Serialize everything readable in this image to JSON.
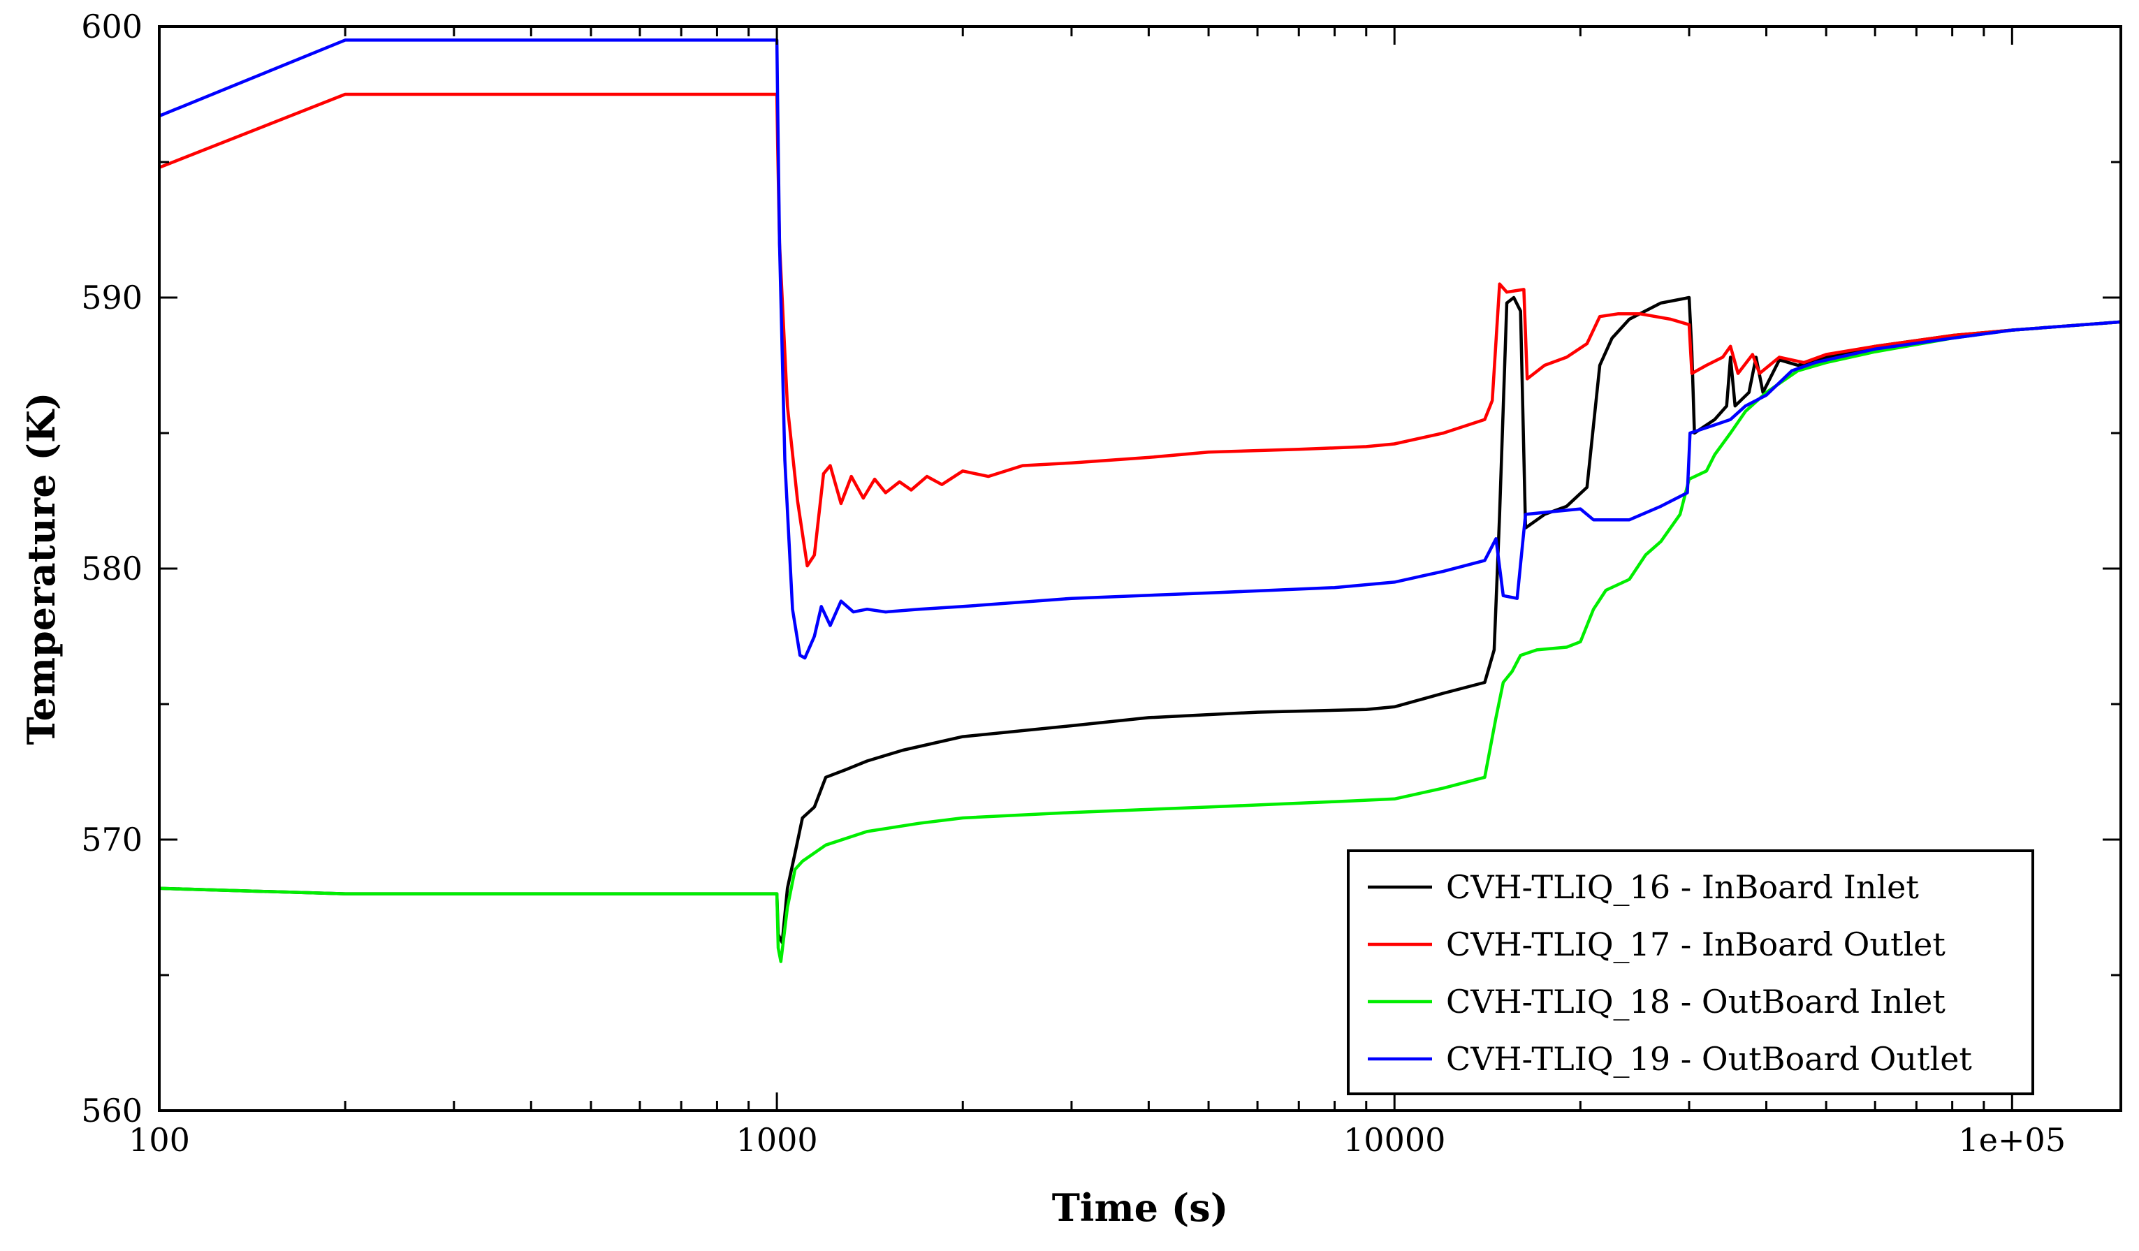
{
  "chart_data": {
    "type": "line",
    "xlabel": "Time (s)",
    "ylabel": "Temperature (K)",
    "xscale": "log",
    "xlim": [
      100,
      150000
    ],
    "ylim": [
      560,
      600
    ],
    "grid": false,
    "legend_position": "bottom-right",
    "x_ticks": [
      {
        "value": 100,
        "label": "100"
      },
      {
        "value": 1000,
        "label": "1000"
      },
      {
        "value": 10000,
        "label": "10000"
      },
      {
        "value": 100000,
        "label": "1e+05"
      }
    ],
    "y_ticks": [
      {
        "value": 560,
        "label": "560"
      },
      {
        "value": 570,
        "label": "570"
      },
      {
        "value": 580,
        "label": "580"
      },
      {
        "value": 590,
        "label": "590"
      },
      {
        "value": 600,
        "label": "600"
      }
    ],
    "series": [
      {
        "name": "CVH-TLIQ_16 - InBoard Inlet",
        "color": "#000000",
        "points": [
          [
            100,
            568.2
          ],
          [
            200,
            568.0
          ],
          [
            1000,
            568.0
          ],
          [
            1005,
            566.5
          ],
          [
            1020,
            566.2
          ],
          [
            1040,
            568.2
          ],
          [
            1070,
            569.5
          ],
          [
            1100,
            570.8
          ],
          [
            1150,
            571.2
          ],
          [
            1200,
            572.3
          ],
          [
            1300,
            572.6
          ],
          [
            1400,
            572.9
          ],
          [
            1600,
            573.3
          ],
          [
            2000,
            573.8
          ],
          [
            3000,
            574.2
          ],
          [
            4000,
            574.5
          ],
          [
            6000,
            574.7
          ],
          [
            9000,
            574.8
          ],
          [
            10000,
            574.9
          ],
          [
            12000,
            575.4
          ],
          [
            14000,
            575.8
          ],
          [
            14500,
            577.0
          ],
          [
            14800,
            582.0
          ],
          [
            15200,
            589.8
          ],
          [
            15600,
            590.0
          ],
          [
            16000,
            589.5
          ],
          [
            16300,
            581.5
          ],
          [
            17500,
            582.0
          ],
          [
            19000,
            582.3
          ],
          [
            20500,
            583.0
          ],
          [
            21500,
            587.5
          ],
          [
            22500,
            588.5
          ],
          [
            24000,
            589.2
          ],
          [
            27000,
            589.8
          ],
          [
            30000,
            590.0
          ],
          [
            30300,
            588.0
          ],
          [
            30600,
            585.0
          ],
          [
            33000,
            585.5
          ],
          [
            34500,
            586.0
          ],
          [
            35000,
            587.8
          ],
          [
            35600,
            586.0
          ],
          [
            37500,
            586.5
          ],
          [
            38500,
            587.8
          ],
          [
            39500,
            586.5
          ],
          [
            42000,
            587.7
          ],
          [
            45000,
            587.5
          ],
          [
            50000,
            587.8
          ],
          [
            60000,
            588.2
          ],
          [
            80000,
            588.6
          ],
          [
            100000,
            588.8
          ],
          [
            150000,
            589.1
          ]
        ]
      },
      {
        "name": "CVH-TLIQ_17 - InBoard Outlet",
        "color": "#ff0000",
        "points": [
          [
            100,
            594.8
          ],
          [
            200,
            597.5
          ],
          [
            1000,
            597.5
          ],
          [
            1003,
            595.5
          ],
          [
            1010,
            592.0
          ],
          [
            1040,
            586.0
          ],
          [
            1080,
            582.5
          ],
          [
            1120,
            580.1
          ],
          [
            1150,
            580.5
          ],
          [
            1190,
            583.5
          ],
          [
            1220,
            583.8
          ],
          [
            1270,
            582.4
          ],
          [
            1320,
            583.4
          ],
          [
            1380,
            582.6
          ],
          [
            1440,
            583.3
          ],
          [
            1500,
            582.8
          ],
          [
            1580,
            583.2
          ],
          [
            1650,
            582.9
          ],
          [
            1750,
            583.4
          ],
          [
            1850,
            583.1
          ],
          [
            2000,
            583.6
          ],
          [
            2200,
            583.4
          ],
          [
            2500,
            583.8
          ],
          [
            3000,
            583.9
          ],
          [
            4000,
            584.1
          ],
          [
            5000,
            584.3
          ],
          [
            7000,
            584.4
          ],
          [
            9000,
            584.5
          ],
          [
            10000,
            584.6
          ],
          [
            12000,
            585.0
          ],
          [
            14000,
            585.5
          ],
          [
            14400,
            586.2
          ],
          [
            14800,
            590.5
          ],
          [
            15200,
            590.2
          ],
          [
            16200,
            590.3
          ],
          [
            16400,
            587.0
          ],
          [
            17500,
            587.5
          ],
          [
            19000,
            587.8
          ],
          [
            20500,
            588.3
          ],
          [
            21500,
            589.3
          ],
          [
            23000,
            589.4
          ],
          [
            25000,
            589.4
          ],
          [
            28000,
            589.2
          ],
          [
            30000,
            589.0
          ],
          [
            30300,
            587.2
          ],
          [
            32000,
            587.5
          ],
          [
            34000,
            587.8
          ],
          [
            35000,
            588.2
          ],
          [
            36000,
            587.2
          ],
          [
            38000,
            587.9
          ],
          [
            39000,
            587.2
          ],
          [
            42000,
            587.8
          ],
          [
            46000,
            587.6
          ],
          [
            50000,
            587.9
          ],
          [
            60000,
            588.2
          ],
          [
            80000,
            588.6
          ],
          [
            100000,
            588.8
          ],
          [
            150000,
            589.1
          ]
        ]
      },
      {
        "name": "CVH-TLIQ_18 - OutBoard Inlet",
        "color": "#00ee00",
        "points": [
          [
            100,
            568.2
          ],
          [
            200,
            568.0
          ],
          [
            1000,
            568.0
          ],
          [
            1005,
            566.0
          ],
          [
            1015,
            565.5
          ],
          [
            1040,
            567.5
          ],
          [
            1070,
            568.9
          ],
          [
            1100,
            569.2
          ],
          [
            1200,
            569.8
          ],
          [
            1400,
            570.3
          ],
          [
            1700,
            570.6
          ],
          [
            2000,
            570.8
          ],
          [
            3000,
            571.0
          ],
          [
            5000,
            571.2
          ],
          [
            8000,
            571.4
          ],
          [
            10000,
            571.5
          ],
          [
            12000,
            571.9
          ],
          [
            14000,
            572.3
          ],
          [
            14600,
            574.5
          ],
          [
            15000,
            575.8
          ],
          [
            15500,
            576.2
          ],
          [
            16000,
            576.8
          ],
          [
            17000,
            577.0
          ],
          [
            19000,
            577.1
          ],
          [
            20000,
            577.3
          ],
          [
            21000,
            578.5
          ],
          [
            22000,
            579.2
          ],
          [
            24000,
            579.6
          ],
          [
            25500,
            580.5
          ],
          [
            27000,
            581.0
          ],
          [
            29000,
            582.0
          ],
          [
            30000,
            583.3
          ],
          [
            32000,
            583.6
          ],
          [
            33000,
            584.2
          ],
          [
            35000,
            585.0
          ],
          [
            37000,
            585.8
          ],
          [
            40000,
            586.5
          ],
          [
            45000,
            587.3
          ],
          [
            50000,
            587.6
          ],
          [
            60000,
            588.0
          ],
          [
            80000,
            588.5
          ],
          [
            100000,
            588.8
          ],
          [
            150000,
            589.1
          ]
        ]
      },
      {
        "name": "CVH-TLIQ_19 - OutBoard Outlet",
        "color": "#0000ff",
        "points": [
          [
            100,
            596.7
          ],
          [
            200,
            599.5
          ],
          [
            1000,
            599.5
          ],
          [
            1003,
            597.0
          ],
          [
            1010,
            592.0
          ],
          [
            1030,
            584.0
          ],
          [
            1060,
            578.5
          ],
          [
            1090,
            576.8
          ],
          [
            1110,
            576.7
          ],
          [
            1150,
            577.5
          ],
          [
            1180,
            578.6
          ],
          [
            1220,
            577.9
          ],
          [
            1270,
            578.8
          ],
          [
            1330,
            578.4
          ],
          [
            1400,
            578.5
          ],
          [
            1500,
            578.4
          ],
          [
            1700,
            578.5
          ],
          [
            2000,
            578.6
          ],
          [
            3000,
            578.9
          ],
          [
            5000,
            579.1
          ],
          [
            8000,
            579.3
          ],
          [
            10000,
            579.5
          ],
          [
            12000,
            579.9
          ],
          [
            14000,
            580.3
          ],
          [
            14600,
            581.1
          ],
          [
            15000,
            579.0
          ],
          [
            15800,
            578.9
          ],
          [
            16300,
            582.0
          ],
          [
            18000,
            582.1
          ],
          [
            20000,
            582.2
          ],
          [
            21000,
            581.8
          ],
          [
            24000,
            581.8
          ],
          [
            27000,
            582.3
          ],
          [
            29800,
            582.8
          ],
          [
            30100,
            585.0
          ],
          [
            33000,
            585.3
          ],
          [
            35000,
            585.5
          ],
          [
            37000,
            586.0
          ],
          [
            40000,
            586.4
          ],
          [
            44000,
            587.3
          ],
          [
            48000,
            587.6
          ],
          [
            60000,
            588.1
          ],
          [
            80000,
            588.5
          ],
          [
            100000,
            588.8
          ],
          [
            150000,
            589.1
          ]
        ]
      }
    ]
  }
}
